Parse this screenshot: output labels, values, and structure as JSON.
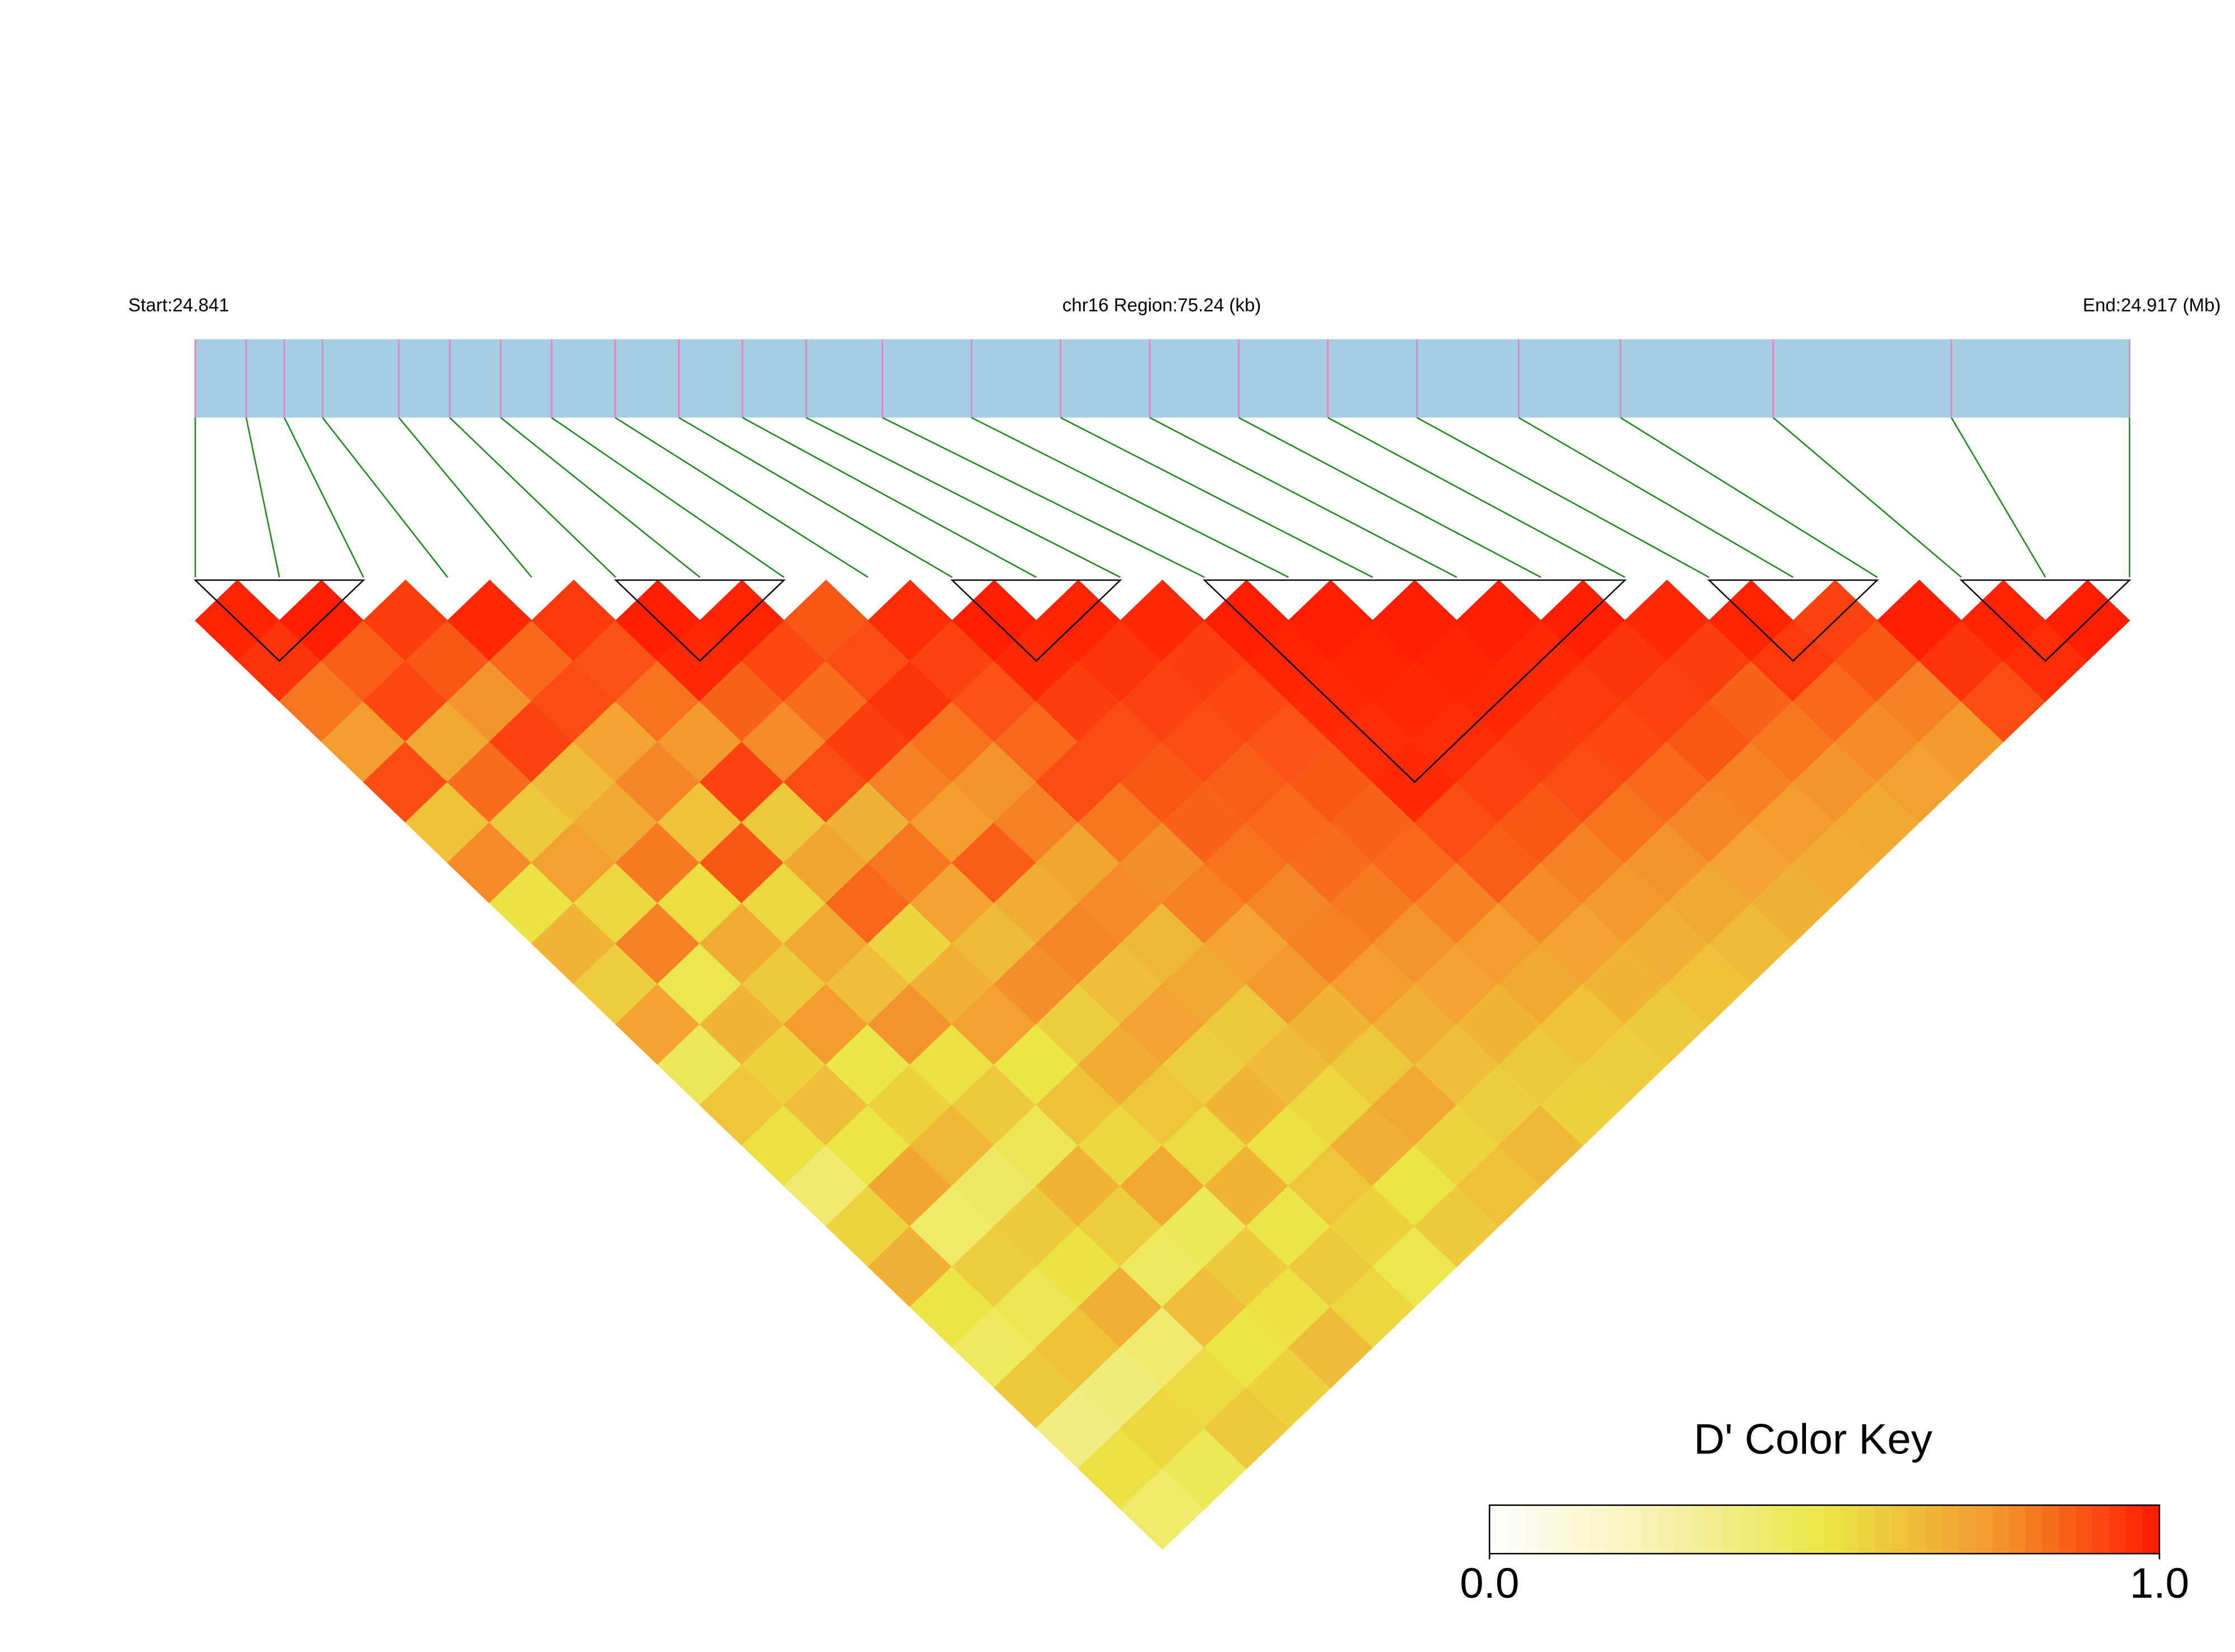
{
  "chart_data": {
    "type": "ld_heatmap",
    "start_label": "Start:24.841",
    "region_label": "chr16 Region:75.24 (kb)",
    "end_label": "End:24.917 (Mb)",
    "xlim": [
      24.841,
      24.917
    ],
    "snp_positions": [
      24.841,
      24.843,
      24.8445,
      24.846,
      24.849,
      24.851,
      24.853,
      24.855,
      24.8575,
      24.86,
      24.8625,
      24.865,
      24.868,
      24.8715,
      24.875,
      24.8785,
      24.882,
      24.8855,
      24.889,
      24.893,
      24.897,
      24.903,
      24.91,
      24.917
    ],
    "bar_color": "#a6cee3",
    "snp_tick_color": "#e08ac4",
    "link_color": "#1a8a1a",
    "dprime": [
      [
        0.98,
        0.95,
        0.82,
        0.74,
        0.9,
        0.62,
        0.78,
        0.51,
        0.66,
        0.58,
        0.72,
        0.45,
        0.61,
        0.52,
        0.4,
        0.56,
        0.67,
        0.5,
        0.44,
        0.6,
        0.36,
        0.52,
        0.41
      ],
      [
        0.99,
        0.87,
        0.91,
        0.7,
        0.84,
        0.6,
        0.73,
        0.55,
        0.8,
        0.48,
        0.66,
        0.57,
        0.63,
        0.5,
        0.71,
        0.42,
        0.58,
        0.47,
        0.62,
        0.38,
        0.55,
        0.46
      ],
      [
        0.93,
        0.88,
        0.76,
        0.92,
        0.64,
        0.7,
        0.81,
        0.53,
        0.69,
        0.6,
        0.74,
        0.49,
        0.57,
        0.65,
        0.43,
        0.59,
        0.51,
        0.68,
        0.4,
        0.54,
        0.6
      ],
      [
        0.97,
        0.85,
        0.9,
        0.72,
        0.79,
        0.62,
        0.88,
        0.55,
        0.7,
        0.63,
        0.76,
        0.52,
        0.6,
        0.47,
        0.66,
        0.58,
        0.44,
        0.63,
        0.5,
        0.57
      ],
      [
        0.94,
        0.89,
        0.83,
        0.75,
        0.92,
        0.6,
        0.71,
        0.85,
        0.56,
        0.68,
        0.73,
        0.5,
        0.62,
        0.55,
        0.7,
        0.46,
        0.59,
        0.52,
        0.64
      ],
      [
        0.99,
        0.97,
        0.86,
        0.78,
        0.9,
        0.67,
        0.82,
        0.72,
        0.64,
        0.77,
        0.58,
        0.69,
        0.61,
        0.54,
        0.66,
        0.49,
        0.6,
        0.55
      ],
      [
        0.98,
        0.91,
        0.84,
        0.93,
        0.8,
        0.74,
        0.87,
        0.69,
        0.79,
        0.63,
        0.72,
        0.58,
        0.66,
        0.52,
        0.61,
        0.57,
        0.48
      ],
      [
        0.88,
        0.9,
        0.95,
        0.83,
        0.76,
        0.8,
        0.71,
        0.78,
        0.65,
        0.7,
        0.6,
        0.64,
        0.55,
        0.68,
        0.5,
        0.59
      ],
      [
        0.96,
        0.92,
        0.89,
        0.85,
        0.9,
        0.82,
        0.77,
        0.8,
        0.72,
        0.75,
        0.66,
        0.6,
        0.7,
        0.56,
        0.62
      ],
      [
        0.99,
        0.97,
        0.93,
        0.9,
        0.88,
        0.86,
        0.83,
        0.79,
        0.8,
        0.74,
        0.68,
        0.63,
        0.58,
        0.65
      ],
      [
        0.98,
        0.95,
        0.92,
        0.9,
        0.87,
        0.85,
        0.84,
        0.81,
        0.76,
        0.72,
        0.66,
        0.6,
        0.57
      ],
      [
        0.97,
        0.93,
        0.91,
        0.89,
        0.88,
        0.86,
        0.85,
        0.8,
        0.74,
        0.7,
        0.62,
        0.58
      ],
      [
        0.99,
        0.98,
        0.97,
        0.96,
        0.97,
        0.9,
        0.87,
        0.78,
        0.72,
        0.66,
        0.6
      ],
      [
        0.99,
        0.98,
        0.97,
        0.96,
        0.92,
        0.88,
        0.8,
        0.75,
        0.68,
        0.62
      ],
      [
        0.99,
        0.98,
        0.97,
        0.93,
        0.9,
        0.83,
        0.76,
        0.7,
        0.64
      ],
      [
        0.99,
        0.97,
        0.94,
        0.91,
        0.85,
        0.79,
        0.72,
        0.67
      ],
      [
        0.99,
        0.95,
        0.92,
        0.88,
        0.8,
        0.74,
        0.69
      ],
      [
        0.97,
        0.93,
        0.86,
        0.82,
        0.76,
        0.7
      ],
      [
        0.98,
        0.94,
        0.85,
        0.78,
        0.73
      ],
      [
        0.92,
        0.88,
        0.8,
        0.75
      ],
      [
        0.99,
        0.95,
        0.9
      ],
      [
        0.98,
        0.96
      ],
      [
        0.99
      ]
    ],
    "blocks": [
      [
        0,
        2
      ],
      [
        5,
        7
      ],
      [
        9,
        11
      ],
      [
        12,
        17
      ],
      [
        18,
        20
      ],
      [
        21,
        23
      ]
    ],
    "colorbar_title": "D' Color Key",
    "colorbar_lim": [
      0,
      1
    ],
    "colorbar_ticks": [
      {
        "value": 0,
        "label": "0.0"
      },
      {
        "value": 1,
        "label": "1.0"
      }
    ],
    "color_stops": [
      "#ffffff",
      "#f7f2b0",
      "#ebe646",
      "#f39a2e",
      "#ff1a00"
    ]
  }
}
